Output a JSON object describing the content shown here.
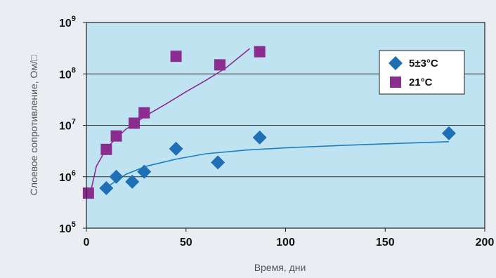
{
  "chart_data": {
    "type": "scatter",
    "xlabel": "Время, дни",
    "ylabel": "Слоевое сопротивление, Ом/□",
    "xlim": [
      0,
      200
    ],
    "ylim": [
      100000,
      1000000000
    ],
    "yscale": "log",
    "grid": true,
    "legend_position": "top-right",
    "plot_background": "#bfe3f0",
    "x_ticks": [
      "0",
      "50",
      "100",
      "150",
      "200"
    ],
    "y_ticks": [
      {
        "base": "10",
        "exp": "5"
      },
      {
        "base": "10",
        "exp": "6"
      },
      {
        "base": "10",
        "exp": "7"
      },
      {
        "base": "10",
        "exp": "8"
      },
      {
        "base": "10",
        "exp": "9"
      }
    ],
    "series": [
      {
        "name": "5±3°C",
        "marker": "diamond",
        "color": "#1f6fb5",
        "points": [
          {
            "x": 10,
            "y": 600000
          },
          {
            "x": 15,
            "y": 1000000
          },
          {
            "x": 23,
            "y": 800000
          },
          {
            "x": 29,
            "y": 1250000
          },
          {
            "x": 45,
            "y": 3500000
          },
          {
            "x": 66,
            "y": 1900000
          },
          {
            "x": 87,
            "y": 5800000
          },
          {
            "x": 182,
            "y": 7000000
          }
        ],
        "trend": {
          "color": "#1f7fc0",
          "points": [
            [
              10,
              620000
            ],
            [
              20,
              1120000
            ],
            [
              30,
              1600000
            ],
            [
              45,
              2200000
            ],
            [
              60,
              2800000
            ],
            [
              80,
              3300000
            ],
            [
              100,
              3650000
            ],
            [
              130,
              4100000
            ],
            [
              160,
              4500000
            ],
            [
              182,
              4800000
            ]
          ]
        }
      },
      {
        "name": "21°C",
        "marker": "square",
        "color": "#8b2c8f",
        "points": [
          {
            "x": 1,
            "y": 480000
          },
          {
            "x": 10,
            "y": 3400000
          },
          {
            "x": 15,
            "y": 6200000
          },
          {
            "x": 24,
            "y": 11000000
          },
          {
            "x": 29,
            "y": 17500000
          },
          {
            "x": 45,
            "y": 220000000
          },
          {
            "x": 67,
            "y": 150000000
          },
          {
            "x": 87,
            "y": 270000000
          }
        ],
        "trend": {
          "color": "#8b2c8f",
          "points": [
            [
              2,
              480000
            ],
            [
              5,
              1600000
            ],
            [
              10,
              3500000
            ],
            [
              15,
              5700000
            ],
            [
              20,
              8500000
            ],
            [
              30,
              15500000
            ],
            [
              40,
              26000000
            ],
            [
              50,
              45000000
            ],
            [
              60,
              75000000
            ],
            [
              70,
              130000000
            ],
            [
              82,
              310000000
            ]
          ]
        }
      }
    ]
  }
}
